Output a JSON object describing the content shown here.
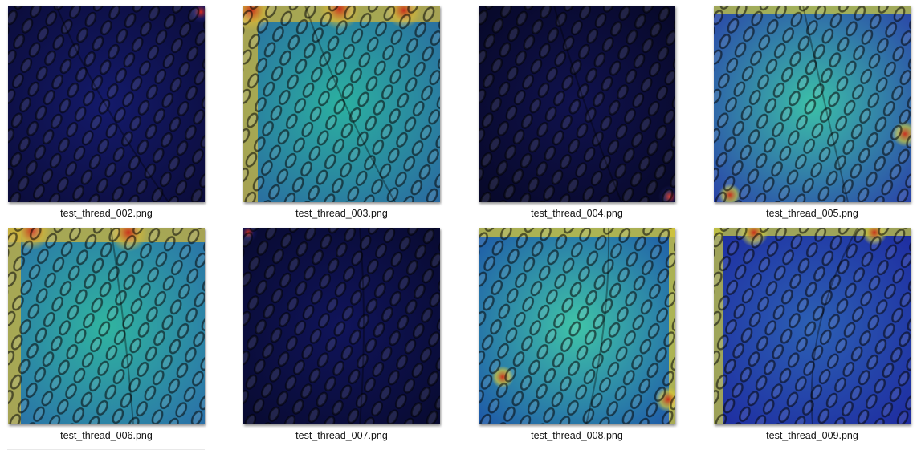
{
  "files": [
    {
      "name": "test_thread_002.png",
      "colors": {
        "base": "#0b0c3a",
        "mid": "#141a6a",
        "hot": "#d62b1e",
        "edge": "#1c1c68"
      }
    },
    {
      "name": "test_thread_003.png",
      "colors": {
        "base": "#2a6aa0",
        "mid": "#2bb0a0",
        "hot": "#c8301c",
        "edge": "#d0b43a"
      }
    },
    {
      "name": "test_thread_004.png",
      "colors": {
        "base": "#070828",
        "mid": "#10124e",
        "hot": "#d62b1e",
        "edge": "#141650"
      }
    },
    {
      "name": "test_thread_005.png",
      "colors": {
        "base": "#2a44a8",
        "mid": "#3cc0a8",
        "hot": "#c83020",
        "edge": "#c8c840"
      }
    },
    {
      "name": "test_thread_006.png",
      "colors": {
        "base": "#2a70a8",
        "mid": "#30b4a0",
        "hot": "#c8301c",
        "edge": "#d0b43a"
      }
    },
    {
      "name": "test_thread_007.png",
      "colors": {
        "base": "#080a30",
        "mid": "#10145a",
        "hot": "#d2301e",
        "edge": "#12145a"
      }
    },
    {
      "name": "test_thread_008.png",
      "colors": {
        "base": "#1e58a8",
        "mid": "#40c4a8",
        "hot": "#c8301c",
        "edge": "#d8c838"
      }
    },
    {
      "name": "test_thread_009.png",
      "colors": {
        "base": "#1e2ca0",
        "mid": "#2c60b4",
        "hot": "#c8301c",
        "edge": "#c8c840"
      }
    }
  ]
}
